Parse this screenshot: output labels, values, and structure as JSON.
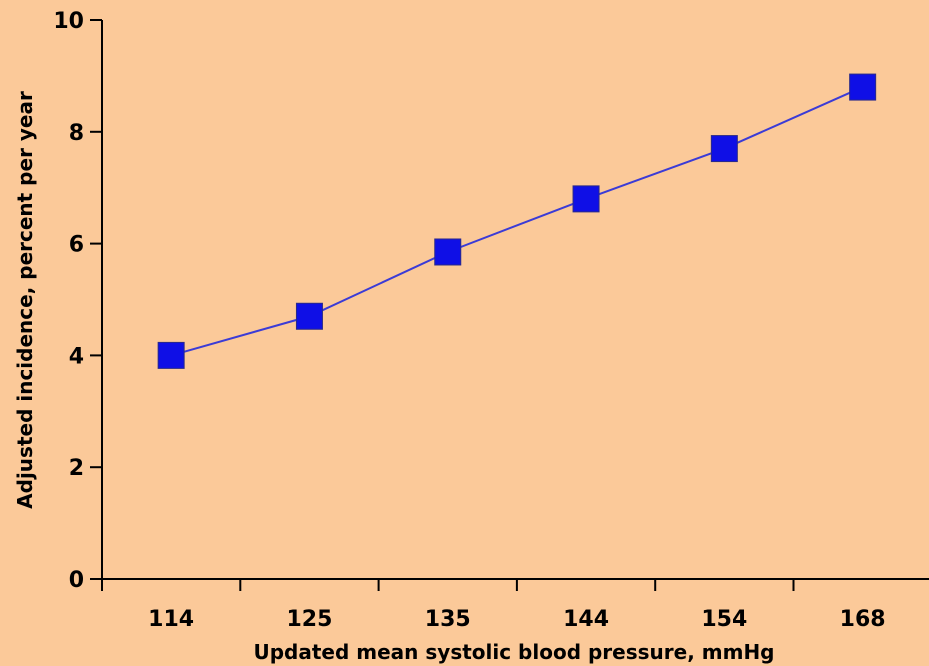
{
  "chart_data": {
    "type": "line",
    "title": "",
    "xlabel": "Updated mean systolic blood pressure, mmHg",
    "ylabel": "Adjusted incidence, percent per year",
    "categories": [
      "114",
      "125",
      "135",
      "144",
      "154",
      "168"
    ],
    "series": [
      {
        "values": [
          4.0,
          4.7,
          5.85,
          6.8,
          7.7,
          8.8
        ]
      }
    ],
    "ylim": [
      0,
      10
    ],
    "yticks": [
      "0",
      "2",
      "4",
      "6",
      "8",
      "10"
    ],
    "grid": false,
    "legend": "none",
    "colors": {
      "background": "#fbc999",
      "marker": "#0f0fe6",
      "line": "#3b3bd6",
      "axis": "#000000"
    }
  }
}
